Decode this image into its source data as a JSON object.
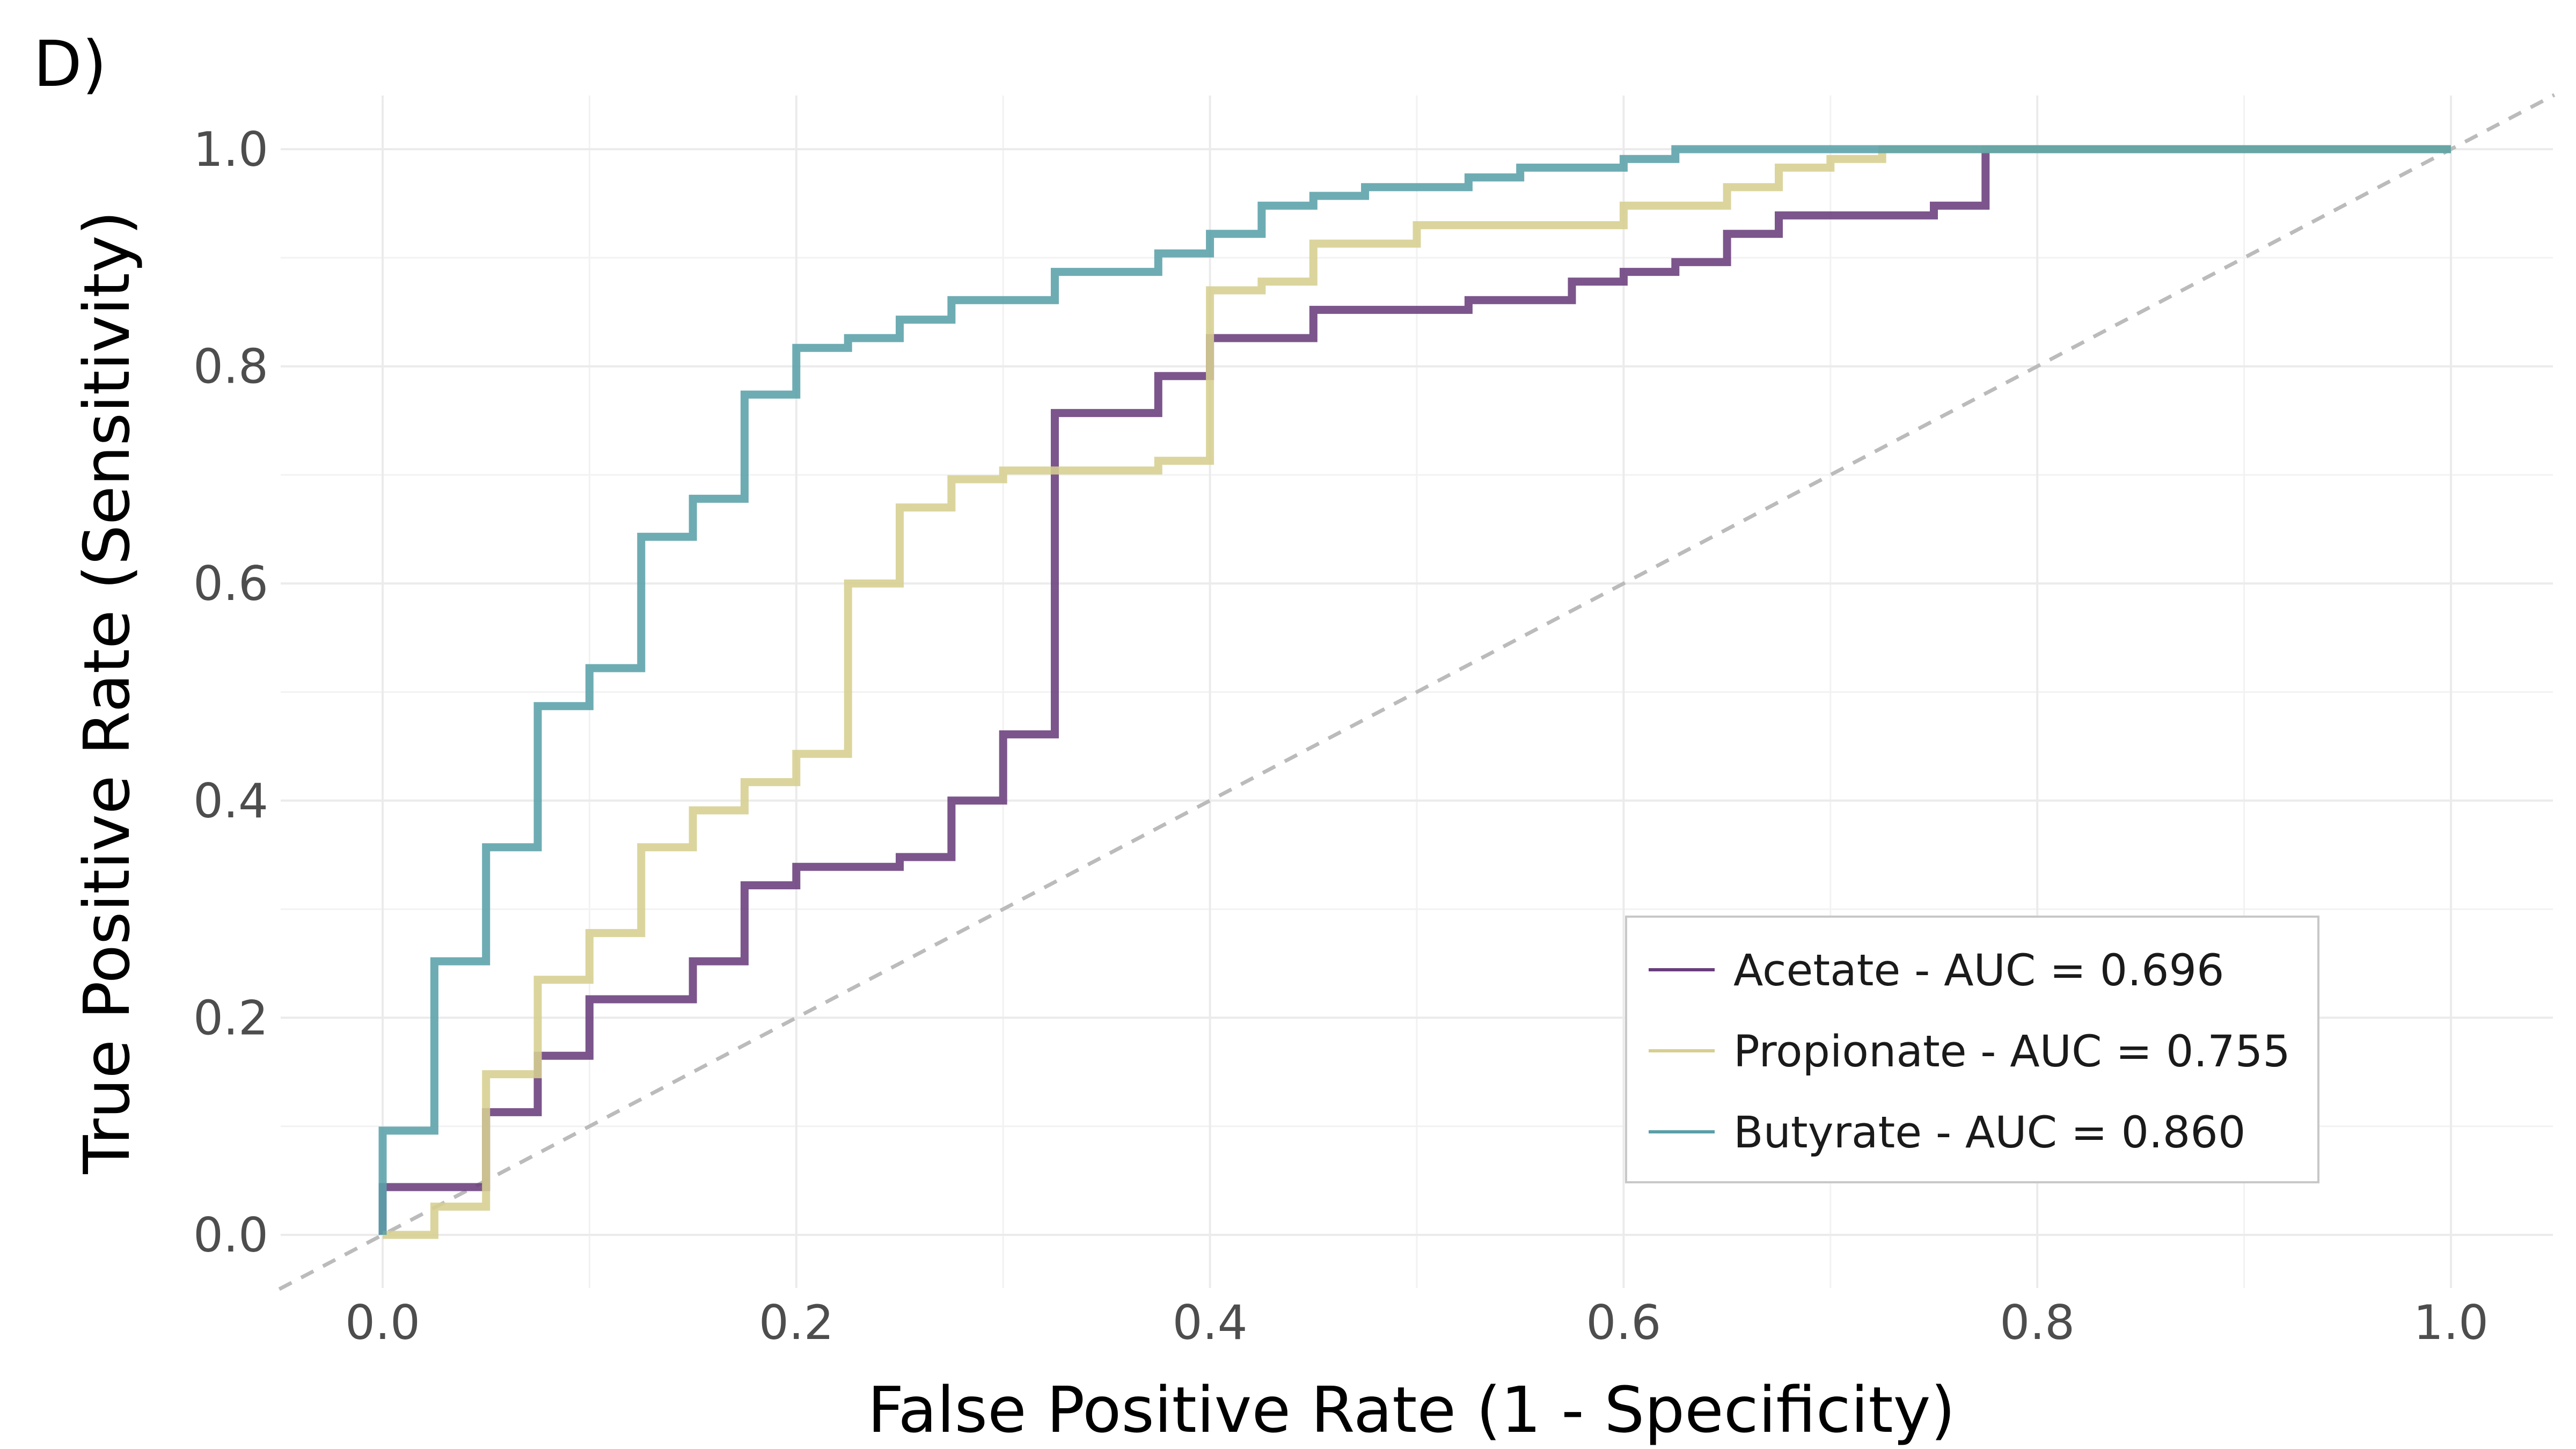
{
  "panel_label": "D)",
  "chart_data": {
    "type": "line",
    "title": "",
    "xlabel": "False Positive Rate (1 - Specificity)",
    "ylabel": "True Positive Rate (Sensitivity)",
    "xlim": [
      -0.05,
      1.05
    ],
    "ylim": [
      -0.05,
      1.05
    ],
    "xticks": [
      0.0,
      0.2,
      0.4,
      0.6,
      0.8,
      1.0
    ],
    "yticks": [
      0.0,
      0.2,
      0.4,
      0.6,
      0.8,
      1.0
    ],
    "xtick_labels": [
      "0.0",
      "0.2",
      "0.4",
      "0.6",
      "0.8",
      "1.0"
    ],
    "ytick_labels": [
      "0.0",
      "0.2",
      "0.4",
      "0.6",
      "0.8",
      "1.0"
    ],
    "grid": true,
    "legend_position": "bottom-right",
    "reference_line": {
      "style": "dashed",
      "color": "#bbbbbb",
      "points": [
        [
          -0.05,
          -0.05
        ],
        [
          1.05,
          1.05
        ]
      ]
    },
    "series": [
      {
        "name": "Acetate - AUC = 0.696",
        "color": "#6a3d7c",
        "x": [
          0,
          0,
          0.05,
          0.05,
          0.075,
          0.075,
          0.1,
          0.1,
          0.15,
          0.15,
          0.175,
          0.175,
          0.2,
          0.2,
          0.25,
          0.25,
          0.275,
          0.275,
          0.3,
          0.3,
          0.325,
          0.325,
          0.375,
          0.375,
          0.4,
          0.4,
          0.45,
          0.45,
          0.525,
          0.525,
          0.575,
          0.575,
          0.6,
          0.6,
          0.625,
          0.625,
          0.65,
          0.65,
          0.675,
          0.675,
          0.75,
          0.75,
          0.775,
          0.775,
          1.0
        ],
        "y": [
          0,
          0.044,
          0.044,
          0.113,
          0.113,
          0.165,
          0.165,
          0.217,
          0.217,
          0.252,
          0.252,
          0.322,
          0.322,
          0.339,
          0.339,
          0.348,
          0.348,
          0.4,
          0.4,
          0.461,
          0.461,
          0.757,
          0.757,
          0.791,
          0.791,
          0.826,
          0.826,
          0.852,
          0.852,
          0.861,
          0.861,
          0.878,
          0.878,
          0.887,
          0.887,
          0.896,
          0.896,
          0.922,
          0.922,
          0.939,
          0.939,
          0.948,
          0.948,
          1.0,
          1.0
        ]
      },
      {
        "name": "Propionate - AUC = 0.755",
        "color": "#d6cf8f",
        "x": [
          0,
          0.025,
          0.025,
          0.05,
          0.05,
          0.075,
          0.075,
          0.1,
          0.1,
          0.125,
          0.125,
          0.15,
          0.15,
          0.175,
          0.175,
          0.2,
          0.2,
          0.225,
          0.225,
          0.25,
          0.25,
          0.275,
          0.275,
          0.3,
          0.3,
          0.375,
          0.375,
          0.4,
          0.4,
          0.425,
          0.425,
          0.45,
          0.45,
          0.5,
          0.5,
          0.6,
          0.6,
          0.65,
          0.65,
          0.675,
          0.675,
          0.7,
          0.7,
          0.725,
          0.725,
          1.0
        ],
        "y": [
          0,
          0,
          0.026,
          0.026,
          0.148,
          0.148,
          0.235,
          0.235,
          0.278,
          0.278,
          0.357,
          0.357,
          0.391,
          0.391,
          0.417,
          0.417,
          0.443,
          0.443,
          0.6,
          0.6,
          0.67,
          0.67,
          0.696,
          0.696,
          0.704,
          0.704,
          0.713,
          0.713,
          0.87,
          0.87,
          0.878,
          0.878,
          0.913,
          0.913,
          0.93,
          0.93,
          0.948,
          0.948,
          0.965,
          0.965,
          0.983,
          0.983,
          0.991,
          0.991,
          1.0,
          1.0
        ]
      },
      {
        "name": "Butyrate - AUC = 0.860",
        "color": "#5aa0a8",
        "x": [
          0,
          0,
          0.025,
          0.025,
          0.05,
          0.05,
          0.075,
          0.075,
          0.1,
          0.1,
          0.125,
          0.125,
          0.15,
          0.15,
          0.175,
          0.175,
          0.2,
          0.2,
          0.225,
          0.225,
          0.25,
          0.25,
          0.275,
          0.275,
          0.325,
          0.325,
          0.375,
          0.375,
          0.4,
          0.4,
          0.425,
          0.425,
          0.45,
          0.45,
          0.475,
          0.475,
          0.525,
          0.525,
          0.55,
          0.55,
          0.6,
          0.6,
          0.625,
          0.625,
          1.0
        ],
        "y": [
          0,
          0.096,
          0.096,
          0.252,
          0.252,
          0.357,
          0.357,
          0.487,
          0.487,
          0.522,
          0.522,
          0.643,
          0.643,
          0.678,
          0.678,
          0.774,
          0.774,
          0.817,
          0.817,
          0.826,
          0.826,
          0.843,
          0.843,
          0.861,
          0.861,
          0.887,
          0.887,
          0.904,
          0.904,
          0.922,
          0.922,
          0.948,
          0.948,
          0.957,
          0.957,
          0.965,
          0.965,
          0.974,
          0.974,
          0.983,
          0.983,
          0.991,
          0.991,
          1.0,
          1.0
        ]
      }
    ]
  }
}
